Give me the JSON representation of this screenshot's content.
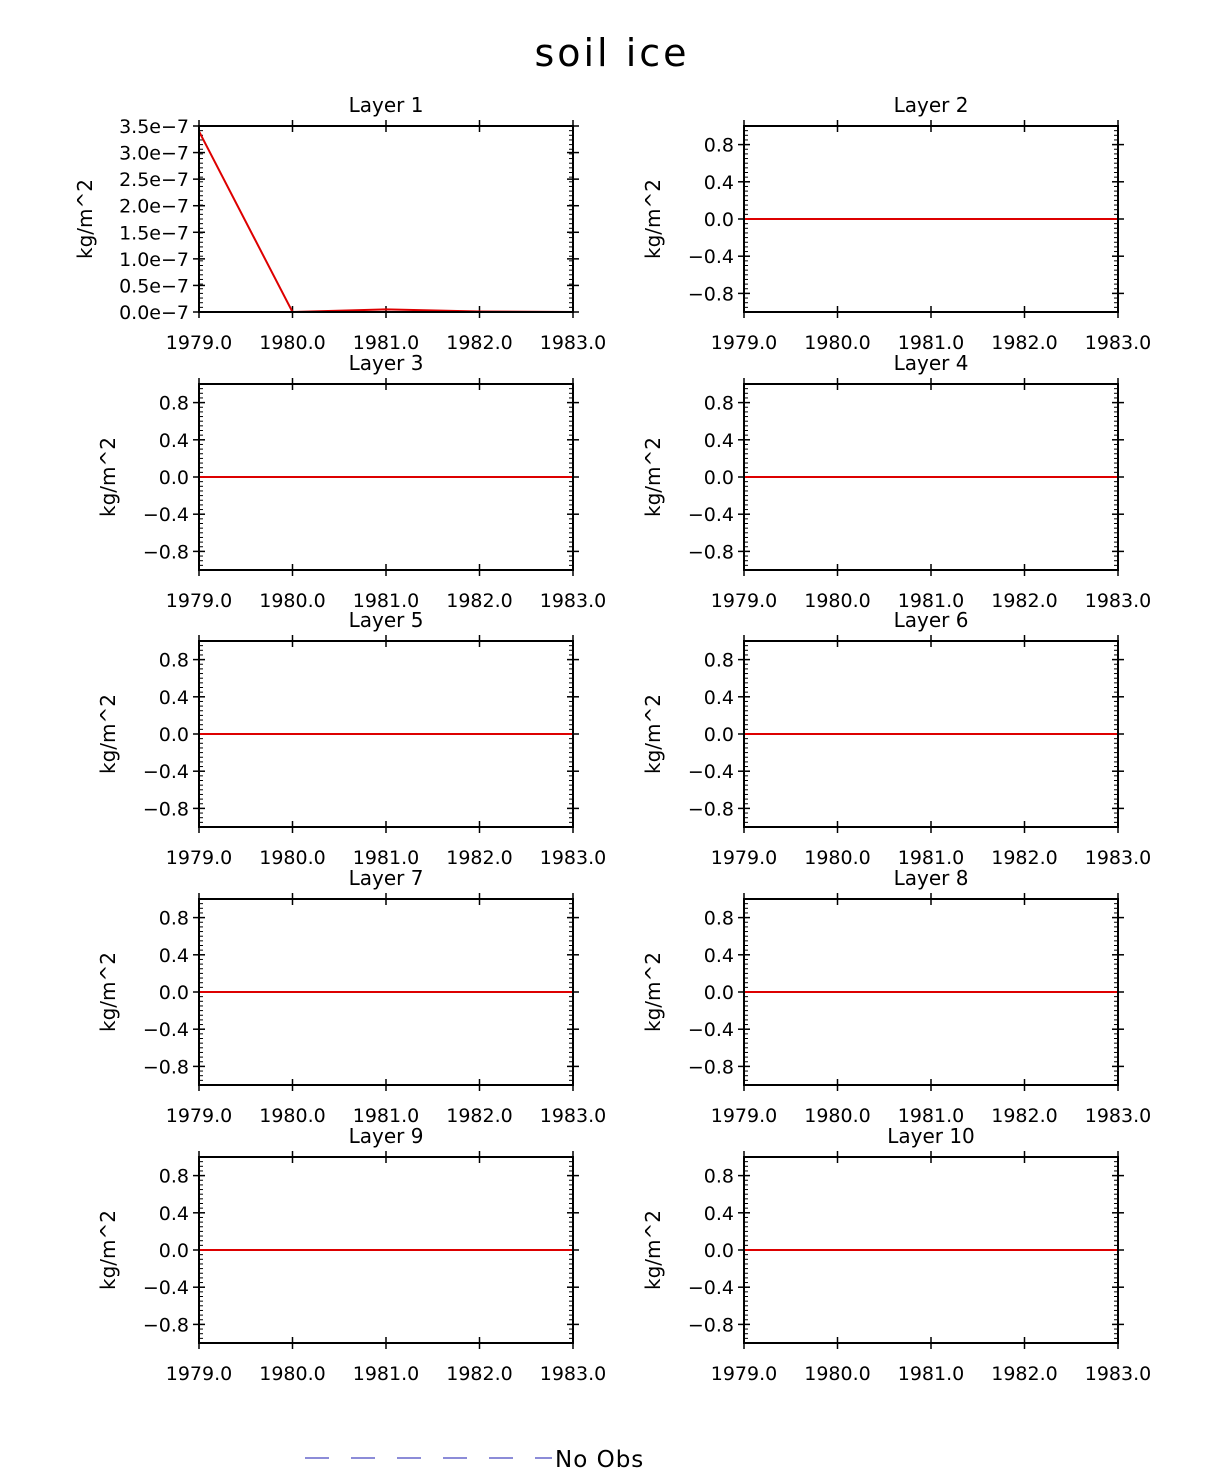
{
  "figure": {
    "title": "soil ice",
    "legend": {
      "placement": "bottom-center",
      "entries": [
        {
          "label": "No Obs",
          "color": "#8c8cd8",
          "style": "dashed"
        }
      ]
    }
  },
  "colors": {
    "series": "#dd0000",
    "axes": "#000000",
    "legend_line": "#8c8cd8"
  },
  "chart_data": [
    {
      "type": "line",
      "title": "Layer 1",
      "ylabel": "kg/m^2",
      "xlim": [
        1979.0,
        1983.0
      ],
      "ylim": [
        0.0,
        3.5e-07
      ],
      "xticks": [
        "1979.0",
        "1980.0",
        "1981.0",
        "1982.0",
        "1983.0"
      ],
      "yticks": [
        {
          "v": 0.0,
          "label": "0.0e−7"
        },
        {
          "v": 5e-08,
          "label": "0.5e−7"
        },
        {
          "v": 1e-07,
          "label": "1.0e−7"
        },
        {
          "v": 1.5e-07,
          "label": "1.5e−7"
        },
        {
          "v": 2e-07,
          "label": "2.0e−7"
        },
        {
          "v": 2.5e-07,
          "label": "2.5e−7"
        },
        {
          "v": 3e-07,
          "label": "3.0e−7"
        },
        {
          "v": 3.5e-07,
          "label": "3.5e−7"
        }
      ],
      "series": [
        {
          "x": [
            1979.0,
            1980.0,
            1981.0,
            1982.0,
            1983.0
          ],
          "y": [
            3.4e-07,
            0.0,
            5e-09,
            1e-09,
            0.0
          ]
        }
      ]
    },
    {
      "type": "line",
      "title": "Layer 2",
      "ylabel": "kg/m^2",
      "xlim": [
        1979.0,
        1983.0
      ],
      "ylim": [
        -1.0,
        1.0
      ],
      "xticks": [
        "1979.0",
        "1980.0",
        "1981.0",
        "1982.0",
        "1983.0"
      ],
      "yticks": [
        {
          "v": 0.8,
          "label": "0.8"
        },
        {
          "v": 0.4,
          "label": "0.4"
        },
        {
          "v": 0.0,
          "label": "0.0"
        },
        {
          "v": -0.4,
          "label": "−0.4"
        },
        {
          "v": -0.8,
          "label": "−0.8"
        }
      ],
      "series": [
        {
          "x": [
            1979.0,
            1980.0,
            1981.0,
            1982.0,
            1983.0
          ],
          "y": [
            0,
            0,
            0,
            0,
            0
          ]
        }
      ]
    },
    {
      "type": "line",
      "title": "Layer 3",
      "ylabel": "kg/m^2",
      "xlim": [
        1979.0,
        1983.0
      ],
      "ylim": [
        -1.0,
        1.0
      ],
      "xticks": [
        "1979.0",
        "1980.0",
        "1981.0",
        "1982.0",
        "1983.0"
      ],
      "yticks": [
        {
          "v": 0.8,
          "label": "0.8"
        },
        {
          "v": 0.4,
          "label": "0.4"
        },
        {
          "v": 0.0,
          "label": "0.0"
        },
        {
          "v": -0.4,
          "label": "−0.4"
        },
        {
          "v": -0.8,
          "label": "−0.8"
        }
      ],
      "series": [
        {
          "x": [
            1979.0,
            1980.0,
            1981.0,
            1982.0,
            1983.0
          ],
          "y": [
            0,
            0,
            0,
            0,
            0
          ]
        }
      ]
    },
    {
      "type": "line",
      "title": "Layer 4",
      "ylabel": "kg/m^2",
      "xlim": [
        1979.0,
        1983.0
      ],
      "ylim": [
        -1.0,
        1.0
      ],
      "xticks": [
        "1979.0",
        "1980.0",
        "1981.0",
        "1982.0",
        "1983.0"
      ],
      "yticks": [
        {
          "v": 0.8,
          "label": "0.8"
        },
        {
          "v": 0.4,
          "label": "0.4"
        },
        {
          "v": 0.0,
          "label": "0.0"
        },
        {
          "v": -0.4,
          "label": "−0.4"
        },
        {
          "v": -0.8,
          "label": "−0.8"
        }
      ],
      "series": [
        {
          "x": [
            1979.0,
            1980.0,
            1981.0,
            1982.0,
            1983.0
          ],
          "y": [
            0,
            0,
            0,
            0,
            0
          ]
        }
      ]
    },
    {
      "type": "line",
      "title": "Layer 5",
      "ylabel": "kg/m^2",
      "xlim": [
        1979.0,
        1983.0
      ],
      "ylim": [
        -1.0,
        1.0
      ],
      "xticks": [
        "1979.0",
        "1980.0",
        "1981.0",
        "1982.0",
        "1983.0"
      ],
      "yticks": [
        {
          "v": 0.8,
          "label": "0.8"
        },
        {
          "v": 0.4,
          "label": "0.4"
        },
        {
          "v": 0.0,
          "label": "0.0"
        },
        {
          "v": -0.4,
          "label": "−0.4"
        },
        {
          "v": -0.8,
          "label": "−0.8"
        }
      ],
      "series": [
        {
          "x": [
            1979.0,
            1980.0,
            1981.0,
            1982.0,
            1983.0
          ],
          "y": [
            0,
            0,
            0,
            0,
            0
          ]
        }
      ]
    },
    {
      "type": "line",
      "title": "Layer 6",
      "ylabel": "kg/m^2",
      "xlim": [
        1979.0,
        1983.0
      ],
      "ylim": [
        -1.0,
        1.0
      ],
      "xticks": [
        "1979.0",
        "1980.0",
        "1981.0",
        "1982.0",
        "1983.0"
      ],
      "yticks": [
        {
          "v": 0.8,
          "label": "0.8"
        },
        {
          "v": 0.4,
          "label": "0.4"
        },
        {
          "v": 0.0,
          "label": "0.0"
        },
        {
          "v": -0.4,
          "label": "−0.4"
        },
        {
          "v": -0.8,
          "label": "−0.8"
        }
      ],
      "series": [
        {
          "x": [
            1979.0,
            1980.0,
            1981.0,
            1982.0,
            1983.0
          ],
          "y": [
            0,
            0,
            0,
            0,
            0
          ]
        }
      ]
    },
    {
      "type": "line",
      "title": "Layer 7",
      "ylabel": "kg/m^2",
      "xlim": [
        1979.0,
        1983.0
      ],
      "ylim": [
        -1.0,
        1.0
      ],
      "xticks": [
        "1979.0",
        "1980.0",
        "1981.0",
        "1982.0",
        "1983.0"
      ],
      "yticks": [
        {
          "v": 0.8,
          "label": "0.8"
        },
        {
          "v": 0.4,
          "label": "0.4"
        },
        {
          "v": 0.0,
          "label": "0.0"
        },
        {
          "v": -0.4,
          "label": "−0.4"
        },
        {
          "v": -0.8,
          "label": "−0.8"
        }
      ],
      "series": [
        {
          "x": [
            1979.0,
            1980.0,
            1981.0,
            1982.0,
            1983.0
          ],
          "y": [
            0,
            0,
            0,
            0,
            0
          ]
        }
      ]
    },
    {
      "type": "line",
      "title": "Layer 8",
      "ylabel": "kg/m^2",
      "xlim": [
        1979.0,
        1983.0
      ],
      "ylim": [
        -1.0,
        1.0
      ],
      "xticks": [
        "1979.0",
        "1980.0",
        "1981.0",
        "1982.0",
        "1983.0"
      ],
      "yticks": [
        {
          "v": 0.8,
          "label": "0.8"
        },
        {
          "v": 0.4,
          "label": "0.4"
        },
        {
          "v": 0.0,
          "label": "0.0"
        },
        {
          "v": -0.4,
          "label": "−0.4"
        },
        {
          "v": -0.8,
          "label": "−0.8"
        }
      ],
      "series": [
        {
          "x": [
            1979.0,
            1980.0,
            1981.0,
            1982.0,
            1983.0
          ],
          "y": [
            0,
            0,
            0,
            0,
            0
          ]
        }
      ]
    },
    {
      "type": "line",
      "title": "Layer 9",
      "ylabel": "kg/m^2",
      "xlim": [
        1979.0,
        1983.0
      ],
      "ylim": [
        -1.0,
        1.0
      ],
      "xticks": [
        "1979.0",
        "1980.0",
        "1981.0",
        "1982.0",
        "1983.0"
      ],
      "yticks": [
        {
          "v": 0.8,
          "label": "0.8"
        },
        {
          "v": 0.4,
          "label": "0.4"
        },
        {
          "v": 0.0,
          "label": "0.0"
        },
        {
          "v": -0.4,
          "label": "−0.4"
        },
        {
          "v": -0.8,
          "label": "−0.8"
        }
      ],
      "series": [
        {
          "x": [
            1979.0,
            1980.0,
            1981.0,
            1982.0,
            1983.0
          ],
          "y": [
            0,
            0,
            0,
            0,
            0
          ]
        }
      ]
    },
    {
      "type": "line",
      "title": "Layer 10",
      "ylabel": "kg/m^2",
      "xlim": [
        1979.0,
        1983.0
      ],
      "ylim": [
        -1.0,
        1.0
      ],
      "xticks": [
        "1979.0",
        "1980.0",
        "1981.0",
        "1982.0",
        "1983.0"
      ],
      "yticks": [
        {
          "v": 0.8,
          "label": "0.8"
        },
        {
          "v": 0.4,
          "label": "0.4"
        },
        {
          "v": 0.0,
          "label": "0.0"
        },
        {
          "v": -0.4,
          "label": "−0.4"
        },
        {
          "v": -0.8,
          "label": "−0.8"
        }
      ],
      "series": [
        {
          "x": [
            1979.0,
            1980.0,
            1981.0,
            1982.0,
            1983.0
          ],
          "y": [
            0,
            0,
            0,
            0,
            0
          ]
        }
      ]
    }
  ]
}
